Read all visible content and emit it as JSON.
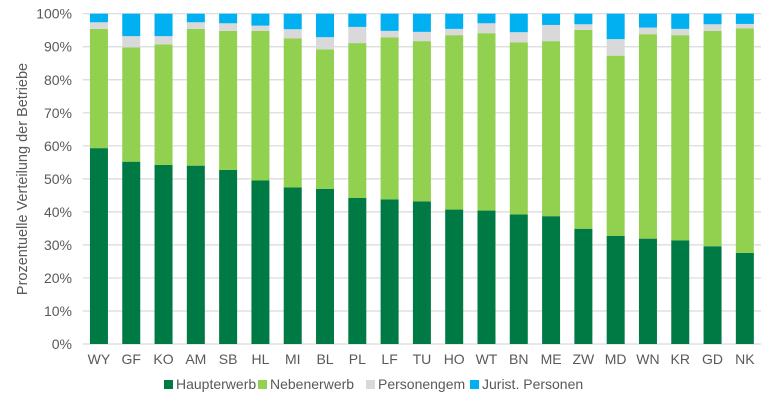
{
  "chart_data": {
    "type": "bar",
    "stacked": true,
    "title": "",
    "xlabel": "",
    "ylabel": "Prozentuelle Verteilung der Betriebe",
    "ylim": [
      0,
      100
    ],
    "yticks": [
      "0%",
      "10%",
      "20%",
      "30%",
      "40%",
      "50%",
      "60%",
      "70%",
      "80%",
      "90%",
      "100%"
    ],
    "grid": true,
    "legend_position": "bottom",
    "categories": [
      "WY",
      "GF",
      "KO",
      "AM",
      "SB",
      "HL",
      "MI",
      "BL",
      "PL",
      "LF",
      "TU",
      "HO",
      "WT",
      "BN",
      "ME",
      "ZW",
      "MD",
      "WN",
      "KR",
      "GD",
      "NK"
    ],
    "series": [
      {
        "name": "Haupterwerb",
        "color": "#007A45",
        "values": [
          59.3,
          55.2,
          54.2,
          54.0,
          52.7,
          49.5,
          47.4,
          47.0,
          44.2,
          43.8,
          43.2,
          40.7,
          40.4,
          39.2,
          38.7,
          34.9,
          32.7,
          31.9,
          31.4,
          29.6,
          27.6
        ]
      },
      {
        "name": "Nebenerwerb",
        "color": "#92D050",
        "values": [
          36.1,
          34.6,
          36.5,
          41.4,
          42.1,
          45.3,
          45.1,
          42.2,
          46.9,
          49.0,
          48.5,
          52.8,
          53.7,
          52.1,
          53.0,
          60.2,
          54.6,
          61.9,
          62.1,
          65.2,
          68.0
        ]
      },
      {
        "name": "Personengem",
        "color": "#D9D9D9",
        "values": [
          2.0,
          3.4,
          2.5,
          2.0,
          2.3,
          1.6,
          2.8,
          3.7,
          4.9,
          2.0,
          2.8,
          1.9,
          3.0,
          3.1,
          4.9,
          1.7,
          5.0,
          2.0,
          1.9,
          2.0,
          1.3
        ]
      },
      {
        "name": "Jurist. Personen",
        "color": "#00B0F0",
        "values": [
          2.6,
          6.8,
          6.8,
          2.6,
          2.9,
          3.6,
          4.7,
          7.1,
          4.0,
          5.2,
          5.5,
          4.6,
          2.9,
          5.6,
          3.4,
          3.2,
          7.7,
          4.2,
          4.6,
          3.2,
          3.1
        ]
      }
    ]
  }
}
